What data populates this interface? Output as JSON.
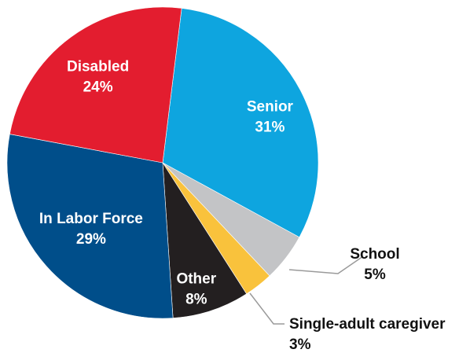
{
  "chart_data": {
    "type": "pie",
    "title": "",
    "start_angle_deg": -83,
    "direction": "clockwise",
    "legend": "none",
    "slices": [
      {
        "label": "Senior",
        "value": 31,
        "value_label": "31%",
        "color": "#0ea5df",
        "label_color": "#ffffff",
        "label_position": "inside"
      },
      {
        "label": "School",
        "value": 5,
        "value_label": "5%",
        "color": "#c3c4c6",
        "label_color": "#111111",
        "label_position": "outside"
      },
      {
        "label": "Single-adult caregiver",
        "value": 3,
        "value_label": "3%",
        "color": "#f9c23c",
        "label_color": "#111111",
        "label_position": "outside"
      },
      {
        "label": "Other",
        "value": 8,
        "value_label": "8%",
        "color": "#231f20",
        "label_color": "#ffffff",
        "label_position": "inside"
      },
      {
        "label": "In Labor Force",
        "value": 29,
        "value_label": "29%",
        "color": "#004e8a",
        "label_color": "#ffffff",
        "label_position": "inside"
      },
      {
        "label": "Disabled",
        "value": 24,
        "value_label": "24%",
        "color": "#e31d2f",
        "label_color": "#ffffff",
        "label_position": "inside"
      }
    ]
  }
}
